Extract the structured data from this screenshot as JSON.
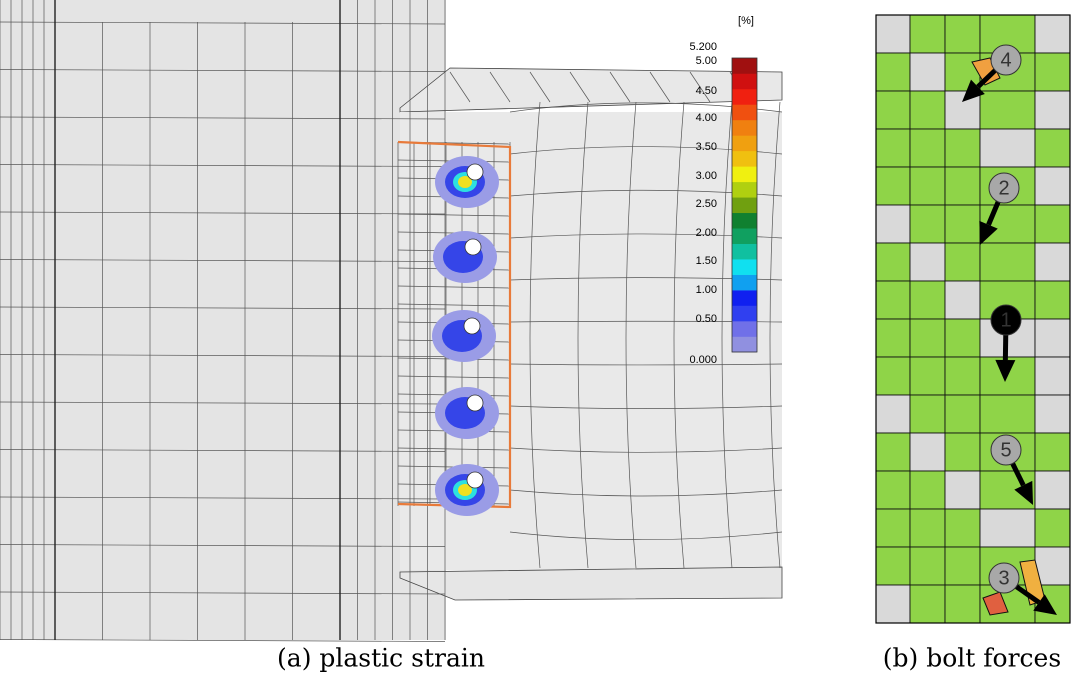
{
  "panel_a": {
    "legend": {
      "unit": "[%]",
      "labels": [
        "5.200",
        "5.00",
        "4.50",
        "4.00",
        "3.50",
        "3.00",
        "2.50",
        "2.00",
        "1.50",
        "1.00",
        "0.50",
        "0.000"
      ]
    },
    "caption": "(a) plastic strain"
  },
  "panel_b": {
    "bolts": [
      "4",
      "2",
      "1",
      "5",
      "3"
    ],
    "caption": "(b) bolt forces"
  }
}
